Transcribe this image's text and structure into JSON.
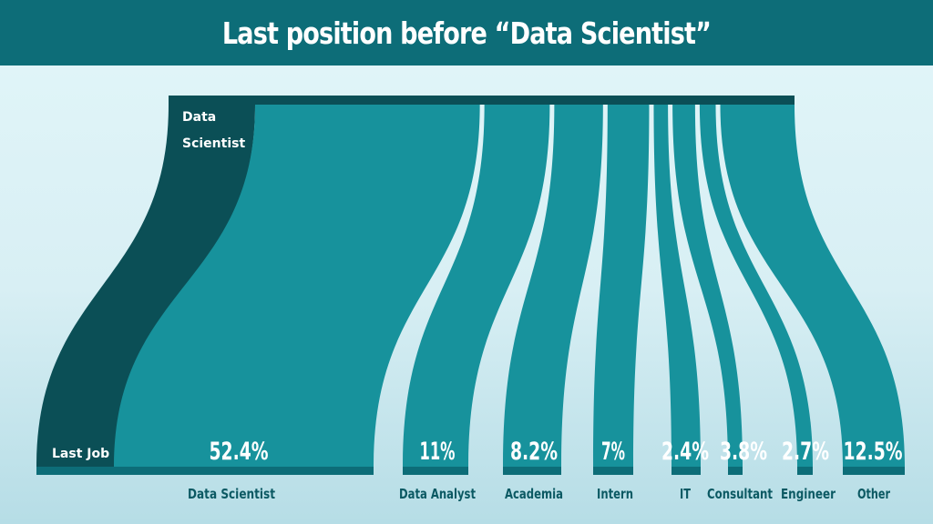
{
  "colors": {
    "title_bg": "#0d6d78",
    "flow_fill": "#17929c",
    "self_flow_fill": "#0b4f56",
    "top_bar": "#0b4f56",
    "bottom_bar": "#0d6d78",
    "category_text": "#0b5963"
  },
  "chart_data": {
    "type": "sankey",
    "title": "Last position before “Data Scientist”",
    "source_label": "Data Scientist",
    "source_label_lines": [
      "Data",
      "Scientist"
    ],
    "target_group_label": "Last Job",
    "categories": [
      "Data Scientist",
      "Data Analyst",
      "Academia",
      "Intern",
      "IT",
      "Consultant",
      "Engineer",
      "Other"
    ],
    "values": [
      52.4,
      11,
      8.2,
      7,
      2.4,
      3.8,
      2.7,
      12.5
    ],
    "value_labels": [
      "52.4%",
      "11%",
      "8.2%",
      "7%",
      "2.4%",
      "3.8%",
      "2.7%",
      "12.5%"
    ],
    "units": "%"
  }
}
